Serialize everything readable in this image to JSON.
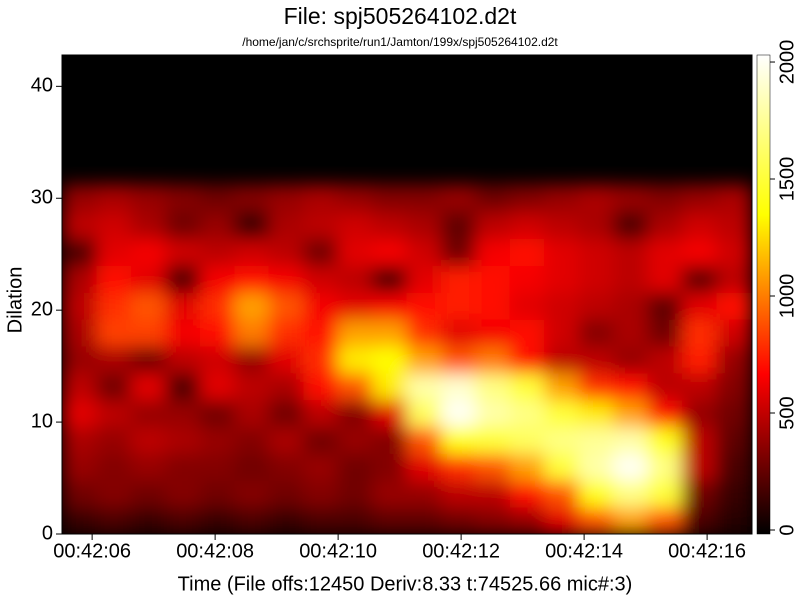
{
  "chart_data": {
    "type": "heatmap",
    "title": "File: spj505264102.d2t",
    "subtitle": "/home/jan/c/srchsprite/run1/Jamton/199x/spj505264102.d2t",
    "x_label": "Time (File offs:12450 Deriv:8.33 t:74525.66 mic#:3)",
    "y_label": "Dilation",
    "xlim": [
      2525.51,
      2536.73
    ],
    "ylim": [
      0,
      42.8
    ],
    "xticks": [
      {
        "value": 2526,
        "label": "00:42:06"
      },
      {
        "value": 2528,
        "label": "00:42:08"
      },
      {
        "value": 2530,
        "label": "00:42:10"
      },
      {
        "value": 2532,
        "label": "00:42:12"
      },
      {
        "value": 2534,
        "label": "00:42:14"
      },
      {
        "value": 2536,
        "label": "00:42:16"
      }
    ],
    "yticks": [
      0,
      10,
      20,
      30,
      40
    ],
    "colormap": [
      "#000000",
      "#ff0000",
      "#ffff00",
      "#ffffff"
    ],
    "clim": [
      0,
      2030
    ],
    "cticks": [
      0,
      500,
      1000,
      1500,
      2000
    ],
    "x": [
      2525.8,
      2526.36,
      2526.92,
      2527.48,
      2528.04,
      2528.6,
      2529.16,
      2529.72,
      2530.28,
      2530.84,
      2531.4,
      2531.96,
      2532.52,
      2533.08,
      2533.64,
      2534.2,
      2534.76,
      2535.32,
      2535.88,
      2536.44
    ],
    "y": [
      1.2,
      3.6,
      6.0,
      8.4,
      10.8,
      13.2,
      15.6,
      18.0,
      20.4,
      22.8,
      25.2,
      27.6,
      30.0
    ],
    "z": [
      [
        150,
        200,
        150,
        200,
        150,
        200,
        150,
        200,
        200,
        250,
        250,
        300,
        350,
        400,
        600,
        900,
        1100,
        900,
        200,
        100
      ],
      [
        300,
        350,
        300,
        350,
        300,
        350,
        300,
        350,
        300,
        400,
        400,
        500,
        500,
        700,
        900,
        1400,
        1700,
        1500,
        300,
        150
      ],
      [
        400,
        350,
        400,
        350,
        350,
        300,
        350,
        400,
        300,
        350,
        600,
        800,
        900,
        1100,
        1500,
        1800,
        2000,
        1700,
        500,
        200
      ],
      [
        450,
        400,
        500,
        450,
        400,
        350,
        450,
        300,
        400,
        350,
        900,
        1400,
        1500,
        1600,
        1700,
        1750,
        1800,
        1400,
        500,
        250
      ],
      [
        600,
        500,
        400,
        400,
        300,
        450,
        300,
        500,
        350,
        600,
        1600,
        2000,
        1800,
        1700,
        1500,
        1300,
        1100,
        700,
        400,
        300
      ],
      [
        500,
        300,
        600,
        200,
        600,
        500,
        450,
        700,
        900,
        1300,
        1800,
        1900,
        1700,
        1500,
        1100,
        800,
        700,
        500,
        500,
        350
      ],
      [
        400,
        450,
        300,
        500,
        550,
        400,
        600,
        800,
        1300,
        1350,
        1100,
        900,
        1000,
        700,
        500,
        500,
        400,
        500,
        750,
        400
      ],
      [
        450,
        850,
        850,
        650,
        700,
        1000,
        800,
        700,
        1100,
        1100,
        800,
        600,
        650,
        700,
        550,
        350,
        450,
        300,
        800,
        550
      ],
      [
        500,
        800,
        900,
        600,
        800,
        1100,
        900,
        650,
        600,
        650,
        700,
        750,
        700,
        600,
        550,
        500,
        450,
        250,
        600,
        700
      ],
      [
        450,
        700,
        600,
        200,
        650,
        700,
        650,
        550,
        500,
        200,
        600,
        750,
        700,
        650,
        600,
        550,
        500,
        600,
        250,
        500
      ],
      [
        200,
        600,
        650,
        550,
        500,
        550,
        500,
        300,
        600,
        650,
        550,
        300,
        650,
        700,
        600,
        550,
        500,
        600,
        650,
        550
      ],
      [
        500,
        550,
        450,
        300,
        400,
        150,
        450,
        500,
        550,
        500,
        450,
        250,
        500,
        550,
        500,
        450,
        200,
        450,
        550,
        500
      ],
      [
        400,
        450,
        400,
        350,
        300,
        350,
        400,
        450,
        400,
        350,
        350,
        400,
        300,
        350,
        400,
        450,
        400,
        350,
        400,
        450
      ]
    ]
  }
}
